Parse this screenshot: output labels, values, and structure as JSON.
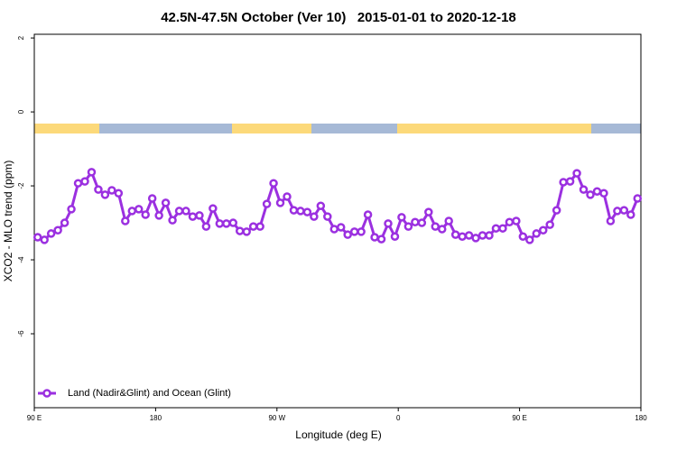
{
  "chart_data": {
    "type": "line",
    "title": "42.5N-47.5N October (Ver 10)   2015-01-01 to 2020-12-18",
    "xlabel": "Longitude (deg E)",
    "ylabel": "XCO2 - MLO trend (ppm)",
    "xlim": [
      90,
      540
    ],
    "ylim": [
      -8,
      2.1
    ],
    "xticks": [
      {
        "value": 90,
        "label": "90 E"
      },
      180,
      {
        "value": 270,
        "label": "90 W"
      },
      {
        "value": 360,
        "label": "0"
      },
      {
        "value": 450,
        "label": "90 E"
      },
      {
        "value": 540,
        "label": "180"
      }
    ],
    "yticks": [
      2,
      0,
      -2,
      -4,
      -6
    ],
    "legend": "bottom-left",
    "x": [
      92.5,
      97.5,
      102.5,
      107.5,
      112.5,
      117.5,
      122.5,
      127.5,
      132.5,
      137.5,
      142.5,
      147.5,
      152.5,
      157.5,
      162.5,
      167.5,
      172.5,
      177.5,
      182.5,
      187.5,
      192.5,
      197.5,
      202.5,
      207.5,
      212.5,
      217.5,
      222.5,
      227.5,
      232.5,
      237.5,
      242.5,
      247.5,
      252.5,
      257.5,
      262.5,
      267.5,
      272.5,
      277.5,
      282.5,
      287.5,
      292.5,
      297.5,
      302.5,
      307.5,
      312.5,
      317.5,
      322.5,
      327.5,
      332.5,
      337.5,
      342.5,
      347.5,
      352.5,
      357.5,
      362.5,
      367.5,
      372.5,
      377.5,
      382.5,
      387.5,
      392.5,
      397.5,
      402.5,
      407.5,
      412.5,
      417.5,
      422.5,
      427.5,
      432.5,
      437.5,
      442.5,
      447.5,
      452.5,
      457.5,
      462.5,
      467.5,
      472.5,
      477.5,
      482.5,
      487.5,
      492.5,
      497.5,
      502.5,
      507.5,
      512.5,
      517.5,
      522.5,
      527.5,
      532.5,
      537.5
    ],
    "series": [
      {
        "name": "Land (Nadir&Glint) and Ocean (Glint)",
        "color": "#9b30e0",
        "values": [
          -3.39,
          -3.46,
          -3.29,
          -3.2,
          -3.0,
          -2.63,
          -1.93,
          -1.88,
          -1.63,
          -2.1,
          -2.24,
          -2.12,
          -2.2,
          -2.95,
          -2.68,
          -2.63,
          -2.78,
          -2.34,
          -2.8,
          -2.46,
          -2.93,
          -2.68,
          -2.68,
          -2.83,
          -2.8,
          -3.1,
          -2.61,
          -3.02,
          -3.02,
          -3.0,
          -3.22,
          -3.24,
          -3.1,
          -3.1,
          -2.49,
          -1.93,
          -2.46,
          -2.29,
          -2.66,
          -2.68,
          -2.71,
          -2.83,
          -2.54,
          -2.83,
          -3.17,
          -3.12,
          -3.32,
          -3.24,
          -3.24,
          -2.78,
          -3.39,
          -3.44,
          -3.02,
          -3.37,
          -2.85,
          -3.1,
          -2.98,
          -3.0,
          -2.71,
          -3.1,
          -3.17,
          -2.95,
          -3.32,
          -3.37,
          -3.34,
          -3.41,
          -3.34,
          -3.34,
          -3.15,
          -3.15,
          -2.98,
          -2.95,
          -3.37,
          -3.46,
          -3.29,
          -3.2,
          -3.05,
          -2.66,
          -1.9,
          -1.88,
          -1.66,
          -2.1,
          -2.24,
          -2.15,
          -2.2,
          -2.95,
          -2.68,
          -2.66,
          -2.78,
          -2.34
        ]
      }
    ]
  }
}
